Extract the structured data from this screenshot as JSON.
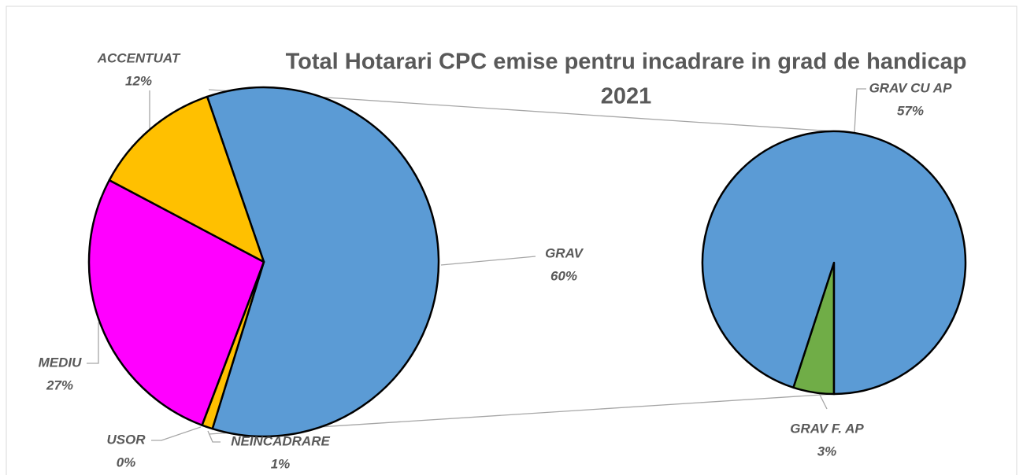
{
  "chart_data": {
    "type": "pie",
    "title": [
      "Total Hotarari CPC emise pentru incadrare in grad de handicap",
      "2021"
    ],
    "categories": [
      "GRAV",
      "NEINCADRARE",
      "USOR",
      "MEDIU",
      "ACCENTUAT"
    ],
    "values": [
      60,
      1,
      0,
      27,
      12
    ],
    "value_labels": [
      "60%",
      "1%",
      "0%",
      "27%",
      "12%"
    ],
    "colors": [
      "#5b9bd5",
      "#ffc000",
      "#ed7d31",
      "#ff00ff",
      "#ffc000"
    ],
    "secondary": {
      "categories": [
        "GRAV F. AP",
        "GRAV CU AP"
      ],
      "values": [
        3,
        57
      ],
      "value_labels": [
        "3%",
        "57%"
      ],
      "colors": [
        "#70ad47",
        "#5b9bd5"
      ]
    }
  }
}
